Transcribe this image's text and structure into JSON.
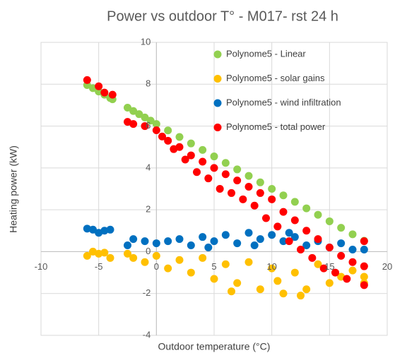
{
  "chart_data": {
    "type": "scatter",
    "title": "Power vs outdoor T° - M017- rst 24 h",
    "x_label": "Outdoor temperature (°C)",
    "y_label": "Heating power  (kW)",
    "xlim": [
      -10,
      20
    ],
    "ylim": [
      -4,
      10
    ],
    "xticks": [
      -10,
      -5,
      0,
      5,
      10,
      15,
      20
    ],
    "yticks": [
      -4,
      -2,
      0,
      2,
      4,
      6,
      8,
      10
    ],
    "grid": true,
    "legend": "top-right",
    "series": [
      {
        "name": "Polynome5 - Linear",
        "color": "#92d050",
        "x": [
          -6,
          -5.5,
          -5,
          -4.5,
          -4,
          -3.8,
          -2.5,
          -2,
          -1.5,
          -1,
          -0.5,
          0,
          1,
          2,
          3,
          4,
          5,
          6,
          7,
          8,
          9,
          10,
          11,
          12,
          13,
          14,
          15,
          16,
          17,
          18
        ],
        "values": [
          7.96,
          7.81,
          7.65,
          7.5,
          7.34,
          7.28,
          6.88,
          6.72,
          6.57,
          6.41,
          6.26,
          6.1,
          5.79,
          5.48,
          5.17,
          4.86,
          4.55,
          4.24,
          3.93,
          3.62,
          3.31,
          3.0,
          2.69,
          2.38,
          2.07,
          1.76,
          1.45,
          1.14,
          0.83,
          0.52
        ]
      },
      {
        "name": "Polynome5 - solar gains",
        "color": "#ffc000",
        "x": [
          -6,
          -5.5,
          -5,
          -4.5,
          -4,
          -2.5,
          -2,
          -1,
          0,
          1,
          2,
          3,
          4,
          5,
          6,
          7,
          8,
          9,
          10,
          11,
          12,
          13,
          14,
          15,
          16,
          17,
          18,
          18,
          6.5,
          10.5,
          12.5
        ],
        "values": [
          -0.2,
          0,
          -0.1,
          -0.05,
          -0.3,
          -0.1,
          -0.3,
          -0.5,
          -0.2,
          -0.8,
          -0.4,
          -1.0,
          -0.3,
          -1.3,
          -0.6,
          -1.5,
          -0.5,
          -1.8,
          -0.8,
          -2.0,
          -1.0,
          -1.8,
          -0.6,
          -1.5,
          -1.2,
          -0.9,
          -1.5,
          -1.2,
          -1.9,
          -1.4,
          -2.1
        ]
      },
      {
        "name": "Polynome5 - wind infiltration",
        "color": "#0070c0",
        "x": [
          -6,
          -5.5,
          -5,
          -4.5,
          -4,
          -2.5,
          -2,
          -1,
          0,
          1,
          2,
          3,
          4,
          5,
          6,
          7,
          8,
          9,
          10,
          11,
          12,
          13,
          14,
          15,
          16,
          17,
          18,
          4.5,
          8.5,
          11.5
        ],
        "values": [
          1.1,
          1.05,
          0.9,
          1.0,
          1.05,
          0.3,
          0.6,
          0.5,
          0.4,
          0.5,
          0.6,
          0.3,
          0.7,
          0.5,
          0.8,
          0.4,
          0.9,
          0.6,
          0.8,
          0.5,
          0.7,
          0.3,
          0.5,
          0.2,
          0.4,
          0.1,
          0.1,
          0.2,
          0.3,
          0.9
        ]
      },
      {
        "name": "Polynome5 - total power",
        "color": "#ff0000",
        "x": [
          -6,
          -5,
          -4.5,
          -3.8,
          -2.5,
          -2,
          -1,
          0,
          0.5,
          1,
          1.5,
          2,
          2.5,
          3,
          3.5,
          4,
          4.5,
          5,
          5.5,
          6,
          6.5,
          7,
          7.5,
          8,
          8.5,
          9,
          9.5,
          10,
          10.5,
          11,
          11.5,
          12,
          12.5,
          13,
          13.5,
          14,
          14.5,
          15,
          15.5,
          16,
          16.5,
          17,
          18,
          18,
          18
        ],
        "values": [
          8.2,
          7.9,
          7.6,
          7.5,
          6.2,
          6.1,
          6.0,
          5.8,
          5.5,
          5.3,
          4.9,
          5.0,
          4.4,
          4.6,
          3.8,
          4.3,
          3.5,
          4.0,
          3.0,
          3.7,
          2.8,
          3.4,
          2.5,
          3.1,
          2.2,
          2.8,
          1.6,
          2.5,
          1.2,
          1.9,
          0.5,
          1.5,
          0.1,
          1.0,
          -0.3,
          0.6,
          -0.8,
          0.2,
          -1.0,
          -0.2,
          -1.3,
          -0.5,
          -1.6,
          -0.7,
          0.5
        ]
      }
    ]
  }
}
